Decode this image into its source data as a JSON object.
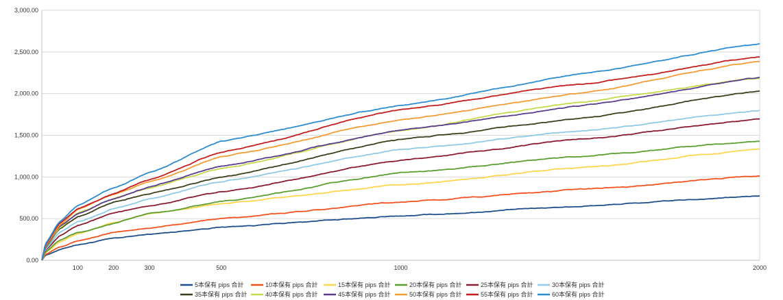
{
  "chart_data": {
    "type": "line",
    "title": "",
    "xlabel": "",
    "ylabel": "",
    "ylim": [
      0,
      3000
    ],
    "xlim": [
      0,
      2000
    ],
    "y_ticks": [
      "0.00",
      "500.00",
      "1,000.00",
      "1,500.00",
      "2,000.00",
      "2,500.00",
      "3,000.00"
    ],
    "y_tick_values": [
      0,
      500,
      1000,
      1500,
      2000,
      2500,
      3000
    ],
    "x_ticks": [
      "100",
      "200",
      "300",
      "500",
      "1000",
      "2000"
    ],
    "x_tick_values": [
      100,
      200,
      300,
      500,
      1000,
      2000
    ],
    "grid": "horizontal",
    "legend_position": "bottom",
    "x_samples": [
      0,
      10,
      50,
      100,
      200,
      300,
      500,
      1000,
      1500,
      2000
    ],
    "series": [
      {
        "name": "5本保有 pips 合計",
        "color": "#1f4e8c",
        "values": [
          0,
          60,
          130,
          190,
          260,
          310,
          400,
          530,
          650,
          770
        ]
      },
      {
        "name": "10本保有 pips 合計",
        "color": "#f4511e",
        "values": [
          0,
          70,
          170,
          240,
          330,
          390,
          500,
          700,
          850,
          1010
        ]
      },
      {
        "name": "15本保有 pips 合計",
        "color": "#ffd54f",
        "values": [
          0,
          90,
          220,
          320,
          450,
          560,
          680,
          900,
          1110,
          1330
        ]
      },
      {
        "name": "20本保有 pips 合計",
        "color": "#5a9e2f",
        "values": [
          0,
          100,
          240,
          330,
          440,
          560,
          700,
          1050,
          1250,
          1430
        ]
      },
      {
        "name": "25本保有 pips 合計",
        "color": "#8b1a2f",
        "values": [
          0,
          120,
          300,
          420,
          560,
          660,
          820,
          1200,
          1450,
          1690
        ]
      },
      {
        "name": "30本保有 pips 合計",
        "color": "#8ecae6",
        "values": [
          0,
          130,
          330,
          460,
          620,
          740,
          950,
          1330,
          1550,
          1800
        ]
      },
      {
        "name": "35本保有 pips 合計",
        "color": "#3b3f1a",
        "values": [
          0,
          150,
          380,
          520,
          700,
          800,
          1000,
          1450,
          1700,
          2030
        ]
      },
      {
        "name": "40本保有 pips 合計",
        "color": "#c5d94a",
        "values": [
          0,
          160,
          390,
          560,
          740,
          870,
          1100,
          1560,
          1900,
          2190
        ]
      },
      {
        "name": "45本保有 pips 合計",
        "color": "#5b3b8c",
        "values": [
          0,
          165,
          410,
          560,
          740,
          880,
          1130,
          1560,
          1850,
          2190
        ]
      },
      {
        "name": "50本保有 pips 合計",
        "color": "#f39c34",
        "values": [
          0,
          180,
          430,
          610,
          790,
          940,
          1240,
          1690,
          2000,
          2390
        ]
      },
      {
        "name": "55本保有 pips 合計",
        "color": "#c41e1e",
        "values": [
          0,
          190,
          450,
          620,
          800,
          960,
          1300,
          1810,
          2110,
          2440
        ]
      },
      {
        "name": "60本保有 pips 合計",
        "color": "#2b8ccf",
        "values": [
          0,
          200,
          470,
          660,
          870,
          1050,
          1430,
          1860,
          2230,
          2600
        ]
      }
    ]
  }
}
